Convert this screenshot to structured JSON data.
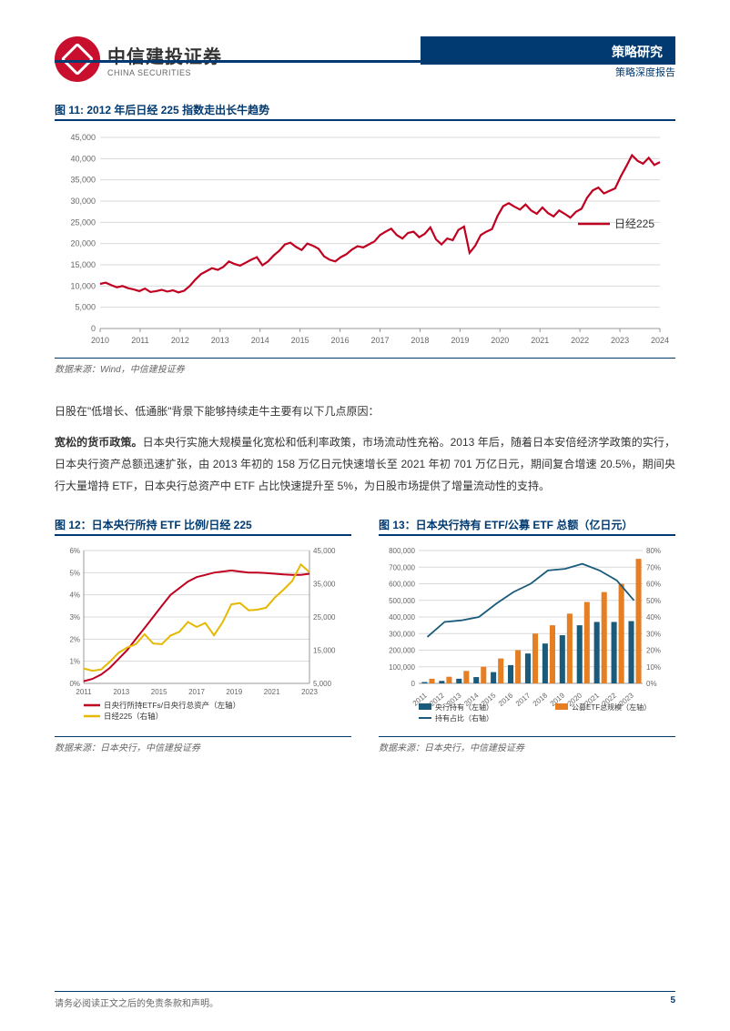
{
  "header": {
    "company_cn": "中信建投证券",
    "company_en": "CHINA SECURITIES",
    "category": "策略研究",
    "subcategory": "策略深度报告"
  },
  "fig11": {
    "title": "图 11: 2012 年后日经 225 指数走出长牛趋势",
    "source": "数据来源：Wind，中信建投证券",
    "type": "line",
    "series_name": "日经225",
    "series_color": "#c00020",
    "legend_line_color": "#c00020",
    "x_labels": [
      "2010",
      "2011",
      "2012",
      "2013",
      "2014",
      "2015",
      "2016",
      "2017",
      "2018",
      "2019",
      "2020",
      "2021",
      "2022",
      "2023",
      "2024"
    ],
    "y_ticks": [
      0,
      5000,
      10000,
      15000,
      20000,
      25000,
      30000,
      35000,
      40000,
      45000
    ],
    "ylim": [
      0,
      45000
    ],
    "grid_color": "#d9d9d9",
    "background": "#ffffff",
    "axis_fontsize": 9,
    "data": [
      10500,
      10800,
      10200,
      9700,
      10000,
      9500,
      9200,
      8800,
      9400,
      8600,
      8800,
      9100,
      8700,
      9000,
      8500,
      8900,
      10000,
      11500,
      12800,
      13500,
      14200,
      13800,
      14500,
      15800,
      15200,
      14800,
      15500,
      16200,
      16800,
      14900,
      15800,
      17200,
      18300,
      19800,
      20200,
      19200,
      18500,
      20000,
      19500,
      18800,
      17000,
      16200,
      15800,
      16800,
      17500,
      18600,
      19400,
      19100,
      19800,
      20500,
      22000,
      22800,
      23500,
      22000,
      21200,
      22500,
      22800,
      21500,
      22300,
      23800,
      21000,
      19800,
      21200,
      20800,
      23200,
      24000,
      17800,
      19500,
      22000,
      22800,
      23400,
      26500,
      28800,
      29500,
      28700,
      28000,
      29200,
      27800,
      27000,
      28500,
      27200,
      26400,
      27800,
      27000,
      26100,
      27500,
      28200,
      30800,
      32500,
      33200,
      31800,
      32400,
      33000,
      35800,
      38200,
      40800,
      39500,
      38800,
      40200,
      38500,
      39200
    ]
  },
  "body": {
    "p1": "日股在\"低增长、低通胀\"背景下能够持续走牛主要有以下几点原因：",
    "p2_bold": "宽松的货币政策。",
    "p2_rest": "日本央行实施大规模量化宽松和低利率政策，市场流动性充裕。2013 年后，随着日本安倍经济学政策的实行，日本央行资产总额迅速扩张，由 2013 年初的 158 万亿日元快速增长至 2021 年初 701 万亿日元，期间复合增速 20.5%，期间央行大量增持 ETF，日本央行总资产中 ETF 占比快速提升至 5%，为日股市场提供了增量流动性的支持。"
  },
  "fig12": {
    "title": "图 12：日本央行所持 ETF 比例/日经 225",
    "source": "数据来源：日本央行，中信建投证券",
    "type": "dual-line",
    "x_labels": [
      "2011",
      "2013",
      "2015",
      "2017",
      "2019",
      "2021",
      "2023"
    ],
    "left_ticks": [
      "0%",
      "1%",
      "2%",
      "3%",
      "4%",
      "5%",
      "6%"
    ],
    "left_lim": [
      0,
      6
    ],
    "right_ticks": [
      "5,000",
      "15,000",
      "25,000",
      "35,000",
      "45,000"
    ],
    "right_lim": [
      5000,
      45000
    ],
    "grid_color": "#d9d9d9",
    "series": [
      {
        "name": "日央行所持ETFs/日央行总资产（左轴）",
        "color": "#c00020",
        "axis": "left",
        "data": [
          0.1,
          0.2,
          0.4,
          0.7,
          1.1,
          1.5,
          2.0,
          2.5,
          3.0,
          3.5,
          4.0,
          4.3,
          4.6,
          4.8,
          4.9,
          5.0,
          5.05,
          5.1,
          5.05,
          5.0,
          5.0,
          4.98,
          4.95,
          4.92,
          4.9,
          4.9,
          4.95
        ]
      },
      {
        "name": "日经225（右轴）",
        "color": "#e6b800",
        "axis": "right",
        "data": [
          9500,
          8800,
          9200,
          11500,
          14200,
          15800,
          16800,
          19800,
          17000,
          16800,
          19400,
          20500,
          23500,
          22000,
          23200,
          19500,
          23400,
          28800,
          29200,
          27000,
          27200,
          27800,
          30800,
          33200,
          35800,
          40800,
          38500
        ]
      }
    ]
  },
  "fig13": {
    "title": "图 13：日本央行持有 ETF/公募 ETF 总额（亿日元）",
    "source": "数据来源：日本央行，中信建投证券",
    "type": "bar-line",
    "x_labels": [
      "2011",
      "2012",
      "2013",
      "2014",
      "2015",
      "2016",
      "2017",
      "2018",
      "2019",
      "2020",
      "2021",
      "2022",
      "2023"
    ],
    "left_ticks": [
      0,
      100000,
      200000,
      300000,
      400000,
      500000,
      600000,
      700000,
      800000
    ],
    "left_lim": [
      0,
      800000
    ],
    "right_ticks": [
      "0%",
      "10%",
      "20%",
      "30%",
      "40%",
      "50%",
      "60%",
      "70%",
      "80%"
    ],
    "right_lim": [
      0,
      80
    ],
    "grid_color": "#d9d9d9",
    "bars": [
      {
        "name": "央行持有（左轴）",
        "color": "#1a5a7a",
        "data": [
          8000,
          15000,
          28000,
          38000,
          68000,
          110000,
          180000,
          240000,
          290000,
          350000,
          370000,
          370000,
          375000
        ]
      },
      {
        "name": "公募ETF总规模（左轴）",
        "color": "#e67e22",
        "data": [
          28000,
          40000,
          75000,
          100000,
          150000,
          200000,
          300000,
          350000,
          420000,
          490000,
          550000,
          600000,
          750000
        ]
      }
    ],
    "line": {
      "name": "持有占比（右轴）",
      "color": "#1a5a7a",
      "data": [
        28,
        37,
        38,
        40,
        48,
        55,
        60,
        68,
        69,
        72,
        68,
        62,
        50
      ]
    }
  },
  "footer": {
    "disclaimer": "请务必阅读正文之后的免责条款和声明。",
    "page": "5"
  }
}
